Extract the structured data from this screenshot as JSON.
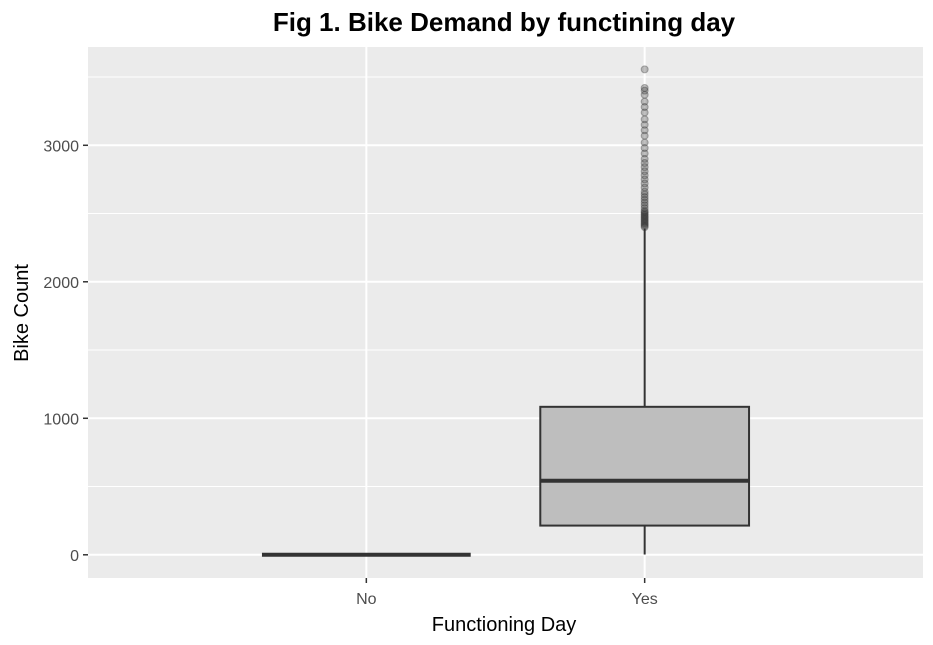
{
  "chart_data": {
    "type": "boxplot",
    "title": "Fig 1. Bike Demand by functining day",
    "xlabel": "Functioning Day",
    "ylabel": "Bike Count",
    "categories": [
      "No",
      "Yes"
    ],
    "yticks": [
      0,
      1000,
      2000,
      3000
    ],
    "ylim": [
      -170,
      3720
    ],
    "grid": true,
    "legend": "none",
    "boxes": [
      {
        "category": "No",
        "min": 0,
        "q1": 0,
        "median": 0,
        "q3": 0,
        "max": 0,
        "outliers": []
      },
      {
        "category": "Yes",
        "min": 2,
        "q1": 214,
        "median": 542,
        "q3": 1084,
        "max": 2390,
        "outliers": [
          2400,
          2410,
          2420,
          2430,
          2440,
          2450,
          2460,
          2470,
          2480,
          2490,
          2500,
          2510,
          2520,
          2540,
          2560,
          2580,
          2600,
          2620,
          2640,
          2660,
          2690,
          2720,
          2750,
          2780,
          2810,
          2840,
          2870,
          2900,
          2940,
          2980,
          3020,
          3070,
          3110,
          3150,
          3190,
          3240,
          3280,
          3320,
          3370,
          3400,
          3420,
          3556
        ]
      }
    ],
    "colors": {
      "panel": "#ebebeb",
      "grid": "#ffffff",
      "box_fill": "#bebebe",
      "box_line": "#333333"
    }
  }
}
